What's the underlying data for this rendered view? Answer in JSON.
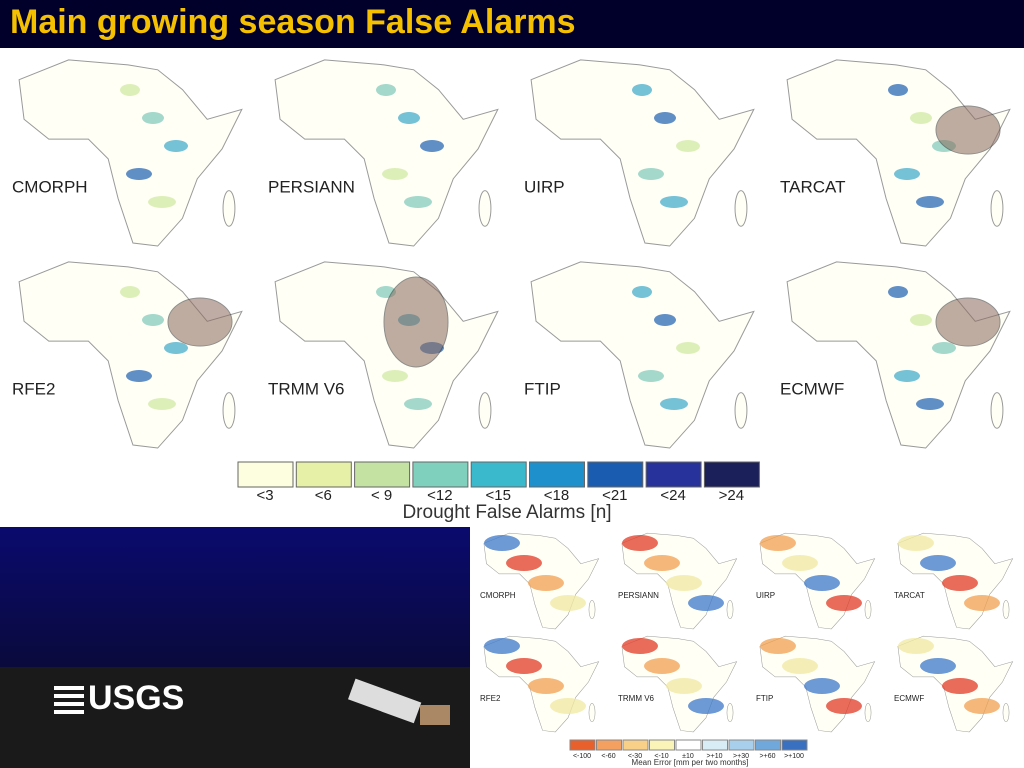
{
  "header": {
    "title": "Main growing season False Alarms"
  },
  "false_alarm_maps": {
    "labels": [
      "CMORPH",
      "PERSIANN",
      "UIRP",
      "TARCAT",
      "RFE2",
      "TRMM V6",
      "FTIP",
      "ECMWF"
    ],
    "legend": {
      "labels": [
        "<3",
        "<6",
        "< 9",
        "<12",
        "<15",
        "<18",
        "<21",
        "<24",
        ">24"
      ],
      "title": "Drought False Alarms [n]"
    }
  },
  "mean_error_maps": {
    "labels": [
      "CMORPH",
      "PERSIANN",
      "UIRP",
      "TARCAT",
      "RFE2",
      "TRMM V6",
      "FTIP",
      "ECMWF"
    ],
    "legend": {
      "labels": [
        "<-100",
        "<-60",
        "<-30",
        "<-10",
        "±10",
        ">+10",
        ">+30",
        ">+60",
        ">+100"
      ],
      "title": "Mean Error [mm per two months]"
    }
  },
  "logo": {
    "text": "USGS"
  }
}
